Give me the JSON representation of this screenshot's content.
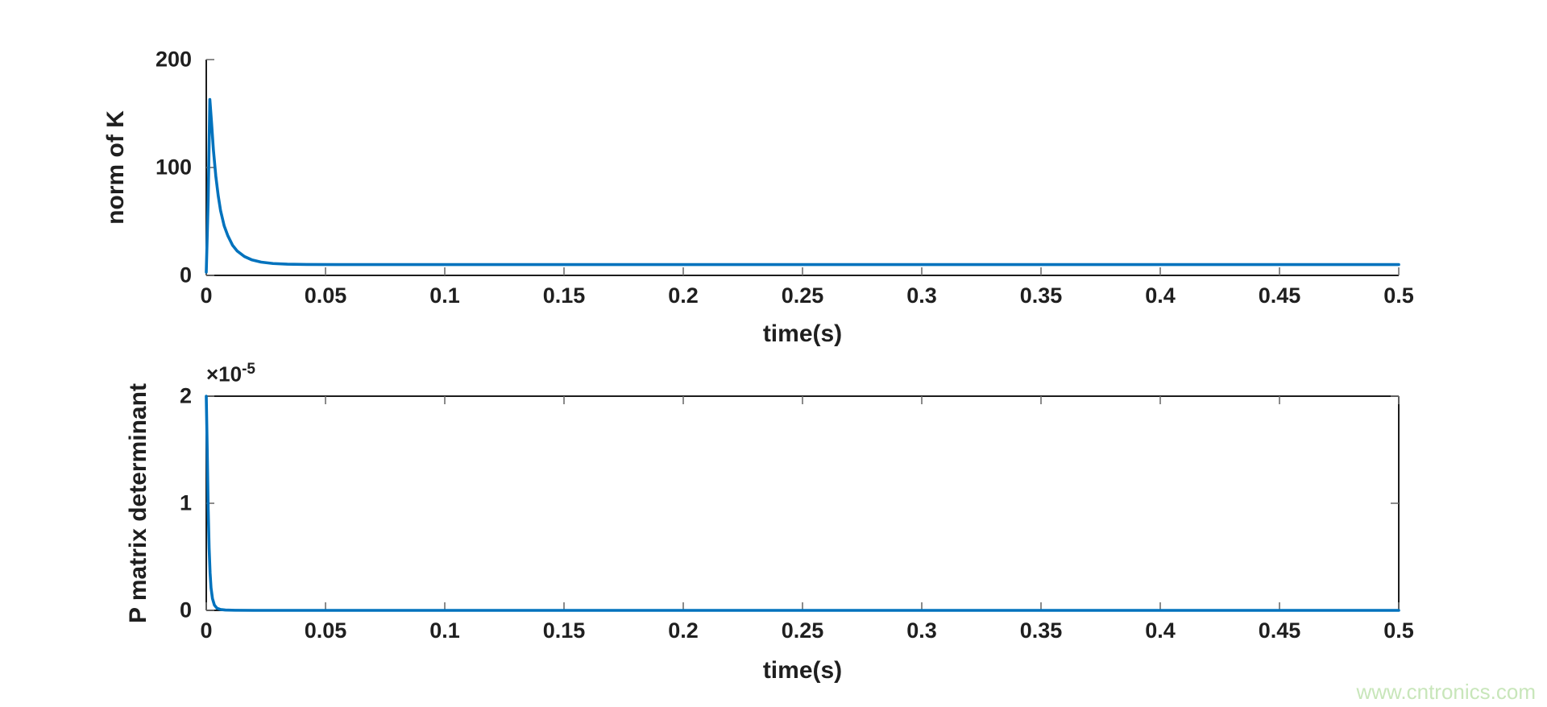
{
  "page": {
    "background": "#ffffff"
  },
  "watermark": {
    "text": "www.cntronics.com",
    "color": "#c8e6ba"
  },
  "chart_data": [
    {
      "id": "norm-k",
      "type": "line",
      "title": "",
      "xlabel": "time(s)",
      "ylabel": "norm of K",
      "xlim": [
        0,
        0.5
      ],
      "ylim": [
        0,
        200
      ],
      "xticks": [
        0,
        0.05,
        0.1,
        0.15,
        0.2,
        0.25,
        0.3,
        0.35,
        0.4,
        0.45,
        0.5
      ],
      "xtick_labels": [
        "0",
        "0.05",
        "0.1",
        "0.15",
        "0.2",
        "0.25",
        "0.3",
        "0.35",
        "0.4",
        "0.45",
        "0.5"
      ],
      "yticks": [
        0,
        100,
        200
      ],
      "ytick_labels": [
        "0",
        "100",
        "200"
      ],
      "box": false,
      "grid": false,
      "line_color": "#0072bd",
      "axis_color": "#1c1c1c",
      "tick_color": "#6e6e6e",
      "series": [
        {
          "name": "norm of K",
          "points": [
            [
              0,
              3
            ],
            [
              0.0008,
              70
            ],
            [
              0.0015,
              163
            ],
            [
              0.0022,
              142
            ],
            [
              0.003,
              116
            ],
            [
              0.004,
              92
            ],
            [
              0.005,
              74
            ],
            [
              0.006,
              60
            ],
            [
              0.0075,
              46
            ],
            [
              0.009,
              37
            ],
            [
              0.011,
              28
            ],
            [
              0.013,
              22.5
            ],
            [
              0.016,
              17.5
            ],
            [
              0.019,
              14.5
            ],
            [
              0.023,
              12.3
            ],
            [
              0.028,
              11
            ],
            [
              0.034,
              10.4
            ],
            [
              0.042,
              10.1
            ],
            [
              0.055,
              10
            ],
            [
              0.08,
              10
            ],
            [
              0.12,
              10
            ],
            [
              0.2,
              10
            ],
            [
              0.3,
              10
            ],
            [
              0.4,
              10
            ],
            [
              0.5,
              10
            ]
          ]
        }
      ],
      "annotations": {
        "peak_value": 163,
        "peak_time": 0.0015,
        "steady_value": 10
      }
    },
    {
      "id": "det-p",
      "type": "line",
      "title": "",
      "xlabel": "time(s)",
      "ylabel": "P matrix determinant",
      "xlim": [
        0,
        0.5
      ],
      "ylim": [
        0,
        2
      ],
      "y_multiplier": 1e-05,
      "y_exponent_base": "×10",
      "y_exponent_power": "-5",
      "xticks": [
        0,
        0.05,
        0.1,
        0.15,
        0.2,
        0.25,
        0.3,
        0.35,
        0.4,
        0.45,
        0.5
      ],
      "xtick_labels": [
        "0",
        "0.05",
        "0.1",
        "0.15",
        "0.2",
        "0.25",
        "0.3",
        "0.35",
        "0.4",
        "0.45",
        "0.5"
      ],
      "yticks": [
        0,
        1,
        2
      ],
      "ytick_labels": [
        "0",
        "1",
        "2"
      ],
      "box": true,
      "grid": false,
      "line_color": "#0072bd",
      "axis_color": "#1c1c1c",
      "tick_color": "#6e6e6e",
      "series": [
        {
          "name": "P matrix determinant",
          "points": [
            [
              0,
              2
            ],
            [
              0.0004,
              1.5
            ],
            [
              0.0008,
              0.95
            ],
            [
              0.0012,
              0.58
            ],
            [
              0.0016,
              0.35
            ],
            [
              0.002,
              0.21
            ],
            [
              0.0026,
              0.11
            ],
            [
              0.0034,
              0.05
            ],
            [
              0.0045,
              0.02
            ],
            [
              0.006,
              0.008
            ],
            [
              0.008,
              0.003
            ],
            [
              0.012,
              0.001
            ],
            [
              0.02,
              0
            ],
            [
              0.1,
              0
            ],
            [
              0.2,
              0
            ],
            [
              0.3,
              0
            ],
            [
              0.4,
              0
            ],
            [
              0.5,
              0
            ]
          ]
        }
      ],
      "annotations": {
        "initial_value": 2,
        "steady_value": 0
      }
    }
  ]
}
